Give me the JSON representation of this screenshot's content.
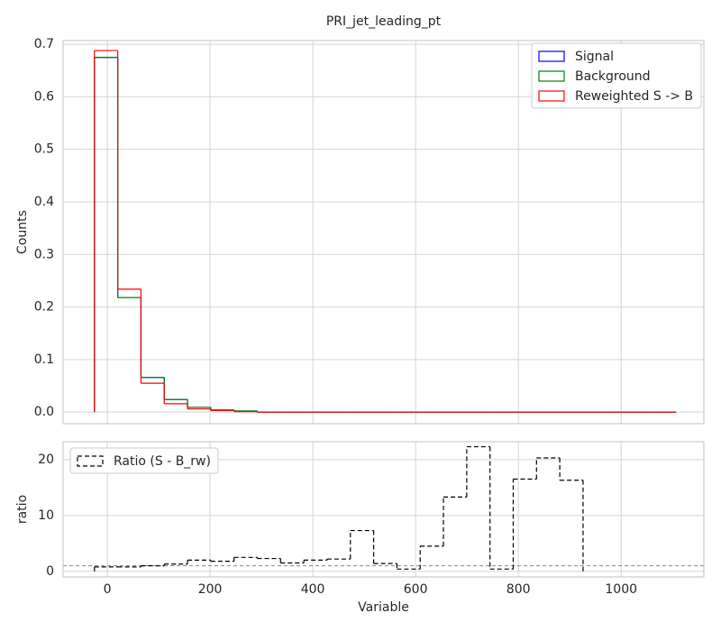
{
  "chart_data": [
    {
      "type": "histogram",
      "title": "PRI_jet_leading_pt",
      "y_label": "Counts",
      "bins": [
        -25,
        20.3,
        65.6,
        110.8,
        156.1,
        201.4,
        246.7,
        292,
        337.2,
        382.5,
        427.8,
        473.1,
        518.4,
        563.6,
        608.9,
        654.2,
        699.5,
        744.8,
        790,
        835.3,
        880.6,
        925.9,
        971.2,
        1016.4,
        1061.7,
        1107
      ],
      "series": [
        {
          "name": "Signal",
          "color": "#0000ff",
          "values": [
            0.675,
            0.218,
            0.066,
            0.024,
            0.009,
            0.004,
            0.002,
            0,
            0,
            0,
            0,
            0,
            0,
            0,
            0,
            0,
            0,
            0,
            0,
            0,
            0,
            0,
            0,
            0,
            0
          ]
        },
        {
          "name": "Background",
          "color": "#008000",
          "values": [
            0.675,
            0.218,
            0.066,
            0.024,
            0.009,
            0.004,
            0.002,
            0,
            0,
            0,
            0,
            0,
            0,
            0,
            0,
            0,
            0,
            0,
            0,
            0,
            0,
            0,
            0,
            0,
            0
          ]
        },
        {
          "name": "Reweighted S -> B",
          "color": "#ff0000",
          "values": [
            0.688,
            0.234,
            0.055,
            0.016,
            0.006,
            0.003,
            0.001,
            0,
            0,
            0,
            0,
            0,
            0,
            0,
            0,
            0,
            0,
            0,
            0,
            0,
            0,
            0,
            0,
            0,
            0
          ]
        }
      ],
      "xlim": [
        -86,
        1161
      ],
      "xticks": [
        0,
        200,
        400,
        600,
        800,
        1000
      ],
      "ylim": [
        -0.022,
        0.707
      ],
      "yticks": [
        {
          "value": 0,
          "label": "0.0"
        },
        0.1,
        0.2,
        0.3,
        0.4,
        0.5,
        0.6,
        0.7
      ],
      "grid": true,
      "legend": "upper right"
    },
    {
      "type": "histogram",
      "x_label": "Variable",
      "y_label": "ratio",
      "bins": [
        -25,
        20.3,
        65.6,
        110.8,
        156.1,
        201.4,
        246.7,
        292,
        337.2,
        382.5,
        427.8,
        473.1,
        518.4,
        563.6,
        608.9,
        654.2,
        699.5,
        744.8,
        790,
        835.3,
        880.6,
        925.9,
        971.2,
        1016.4,
        1061.7,
        1107
      ],
      "series": [
        {
          "name": "Ratio (S - B_rw)",
          "color": "#000000",
          "linestyle": "dashed",
          "values": [
            0.8,
            0.8,
            1.0,
            1.3,
            2.0,
            1.8,
            2.5,
            2.3,
            1.5,
            2.0,
            2.2,
            7.3,
            1.4,
            0.4,
            4.5,
            13.3,
            22.3,
            0.4,
            16.5,
            20.3,
            16.3,
            null,
            null,
            null,
            null
          ]
        }
      ],
      "hline": 1,
      "xlim": [
        -86,
        1161
      ],
      "xticks": [
        0,
        200,
        400,
        600,
        800,
        1000
      ],
      "ylim": [
        -1,
        23.2
      ],
      "yticks": [
        0,
        10,
        20
      ],
      "grid": true,
      "legend": "upper left"
    }
  ]
}
